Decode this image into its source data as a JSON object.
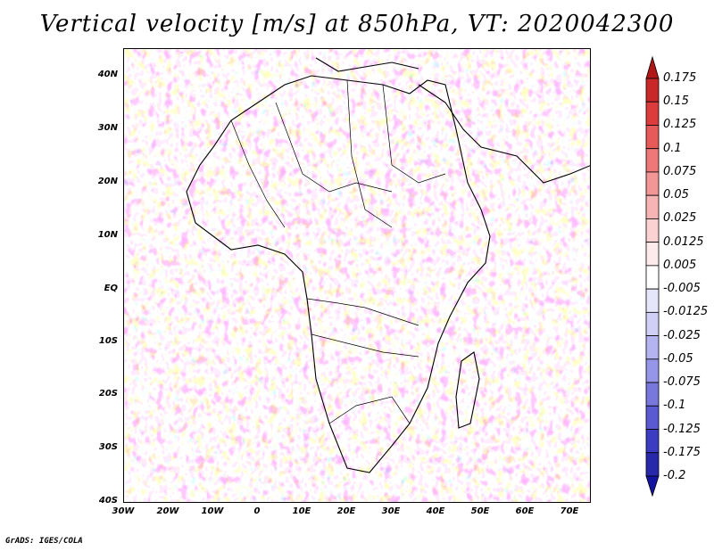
{
  "title": "Vertical velocity [m/s] at 850hPa, VT: 2020042300",
  "credit": "GrADS: IGES/COLA",
  "lat_labels": [
    "40N",
    "30N",
    "20N",
    "10N",
    "EQ",
    "10S",
    "20S",
    "30S",
    "40S"
  ],
  "lon_labels": [
    "30W",
    "20W",
    "10W",
    "0",
    "10E",
    "20E",
    "30E",
    "40E",
    "50E",
    "60E",
    "70E"
  ],
  "map_extent": {
    "lon": [
      -30,
      75
    ],
    "lat": [
      -40,
      45
    ]
  },
  "colorbar": {
    "levels": [
      "0.175",
      "0.15",
      "0.125",
      "0.1",
      "0.075",
      "0.05",
      "0.025",
      "0.0125",
      "0.005",
      "-0.005",
      "-0.0125",
      "-0.025",
      "-0.05",
      "-0.075",
      "-0.1",
      "-0.125",
      "-0.175",
      "-0.2"
    ],
    "colors": [
      "#b01818",
      "#c82828",
      "#dc3c3c",
      "#e65a5a",
      "#ee7878",
      "#f39696",
      "#f7b4b4",
      "#fbd2d2",
      "#fdeaea",
      "#ffffff",
      "#e6e6fb",
      "#d0d0f6",
      "#b4b4f0",
      "#9696e8",
      "#7878dc",
      "#5a5ad2",
      "#3c3cc3",
      "#2828aa",
      "#1414a0"
    ]
  }
}
